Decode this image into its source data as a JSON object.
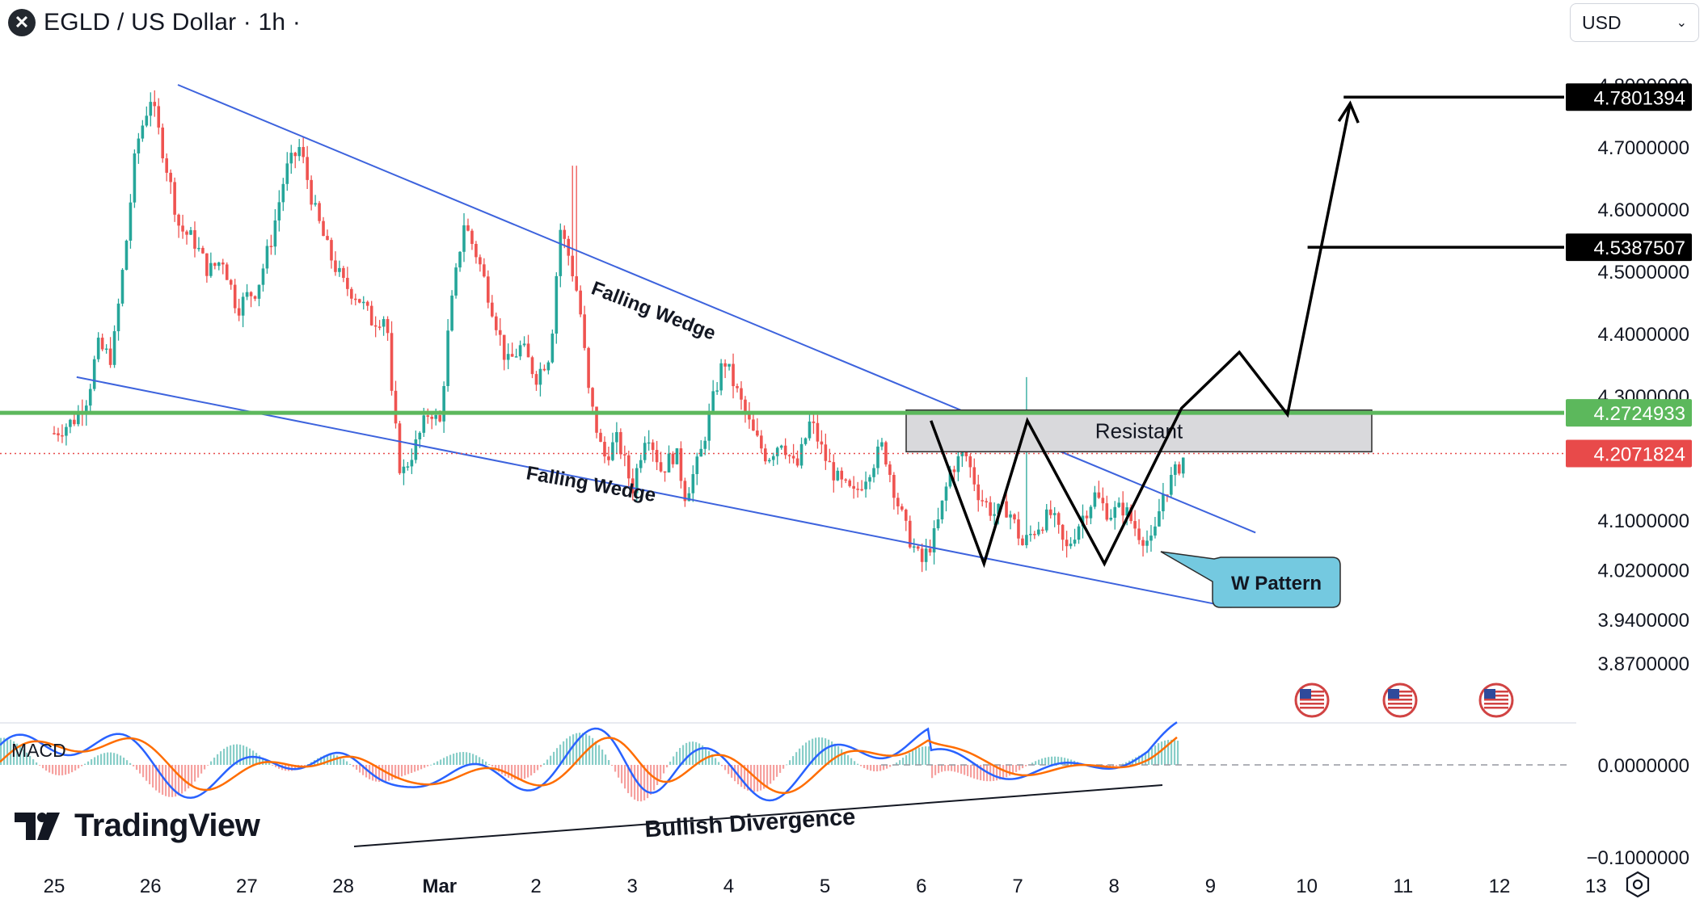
{
  "header": {
    "symbol_title": "EGLD / US Dollar · 1h ·",
    "logo_icon": "multiversx-logo-icon",
    "currency": "USD",
    "currency_icon": "chevron-down-icon"
  },
  "brand": {
    "name": "TradingView",
    "icon": "tradingview-logo-icon"
  },
  "annotations": {
    "falling_wedge_upper": "Falling Wedge",
    "falling_wedge_lower": "Falling Wedge",
    "resistant": "Resistant",
    "w_pattern": "W Pattern",
    "bullish_divergence": "Bullish Divergence",
    "macd_label": "MACD"
  },
  "price_tags": {
    "target_2": "4.7801394",
    "target_1": "4.5387507",
    "resistance": "4.2724933",
    "current": "4.2071824"
  },
  "colors": {
    "up_candle": "#26a69a",
    "down_candle": "#ef5350",
    "wedge_line": "#3d63dd",
    "resistance_line": "#5cb85c",
    "current_price": "#e84a4a",
    "w_pattern_box": "#74c9e0",
    "macd_line": "#2962ff",
    "signal_line": "#ff6d00"
  },
  "chart_data": {
    "type": "candlestick",
    "price_axis": {
      "ticks": [
        "4.8000000",
        "4.7000000",
        "4.6000000",
        "4.5000000",
        "4.4000000",
        "4.3000000",
        "4.1000000",
        "4.0200000",
        "3.9400000",
        "3.8700000"
      ],
      "ylim": [
        3.85,
        4.83
      ]
    },
    "time_axis": {
      "ticks": [
        "25",
        "26",
        "27",
        "28",
        "Mar",
        "2",
        "3",
        "4",
        "5",
        "6",
        "7",
        "8",
        "9",
        "10",
        "11",
        "12",
        "13"
      ]
    },
    "macd_axis": {
      "ticks": [
        "0.0000000",
        "−0.1000000"
      ]
    },
    "ohlc_path": [
      [
        0,
        4.24
      ],
      [
        0.2,
        4.26
      ],
      [
        0.35,
        4.3
      ],
      [
        0.45,
        4.38
      ],
      [
        0.6,
        4.36
      ],
      [
        0.75,
        4.55
      ],
      [
        0.85,
        4.7
      ],
      [
        1.0,
        4.78
      ],
      [
        1.15,
        4.68
      ],
      [
        1.3,
        4.57
      ],
      [
        1.45,
        4.55
      ],
      [
        1.6,
        4.5
      ],
      [
        1.75,
        4.52
      ],
      [
        1.9,
        4.44
      ],
      [
        2.0,
        4.46
      ],
      [
        2.1,
        4.47
      ],
      [
        2.25,
        4.55
      ],
      [
        2.4,
        4.66
      ],
      [
        2.55,
        4.7
      ],
      [
        2.7,
        4.6
      ],
      [
        2.85,
        4.53
      ],
      [
        3.0,
        4.48
      ],
      [
        3.15,
        4.46
      ],
      [
        3.3,
        4.42
      ],
      [
        3.45,
        4.43
      ],
      [
        3.5,
        4.3
      ],
      [
        3.6,
        4.17
      ],
      [
        3.75,
        4.22
      ],
      [
        3.9,
        4.28
      ],
      [
        4.0,
        4.25
      ],
      [
        4.1,
        4.42
      ],
      [
        4.25,
        4.58
      ],
      [
        4.4,
        4.52
      ],
      [
        4.55,
        4.44
      ],
      [
        4.7,
        4.35
      ],
      [
        4.85,
        4.38
      ],
      [
        5.0,
        4.33
      ],
      [
        5.15,
        4.37
      ],
      [
        5.25,
        4.57
      ],
      [
        5.35,
        4.52
      ],
      [
        5.45,
        4.45
      ],
      [
        5.55,
        4.3
      ],
      [
        5.7,
        4.2
      ],
      [
        5.85,
        4.23
      ],
      [
        6.0,
        4.15
      ],
      [
        6.15,
        4.25
      ],
      [
        6.3,
        4.18
      ],
      [
        6.45,
        4.21
      ],
      [
        6.55,
        4.14
      ],
      [
        6.7,
        4.2
      ],
      [
        6.8,
        4.27
      ],
      [
        6.95,
        4.36
      ],
      [
        7.1,
        4.3
      ],
      [
        7.25,
        4.24
      ],
      [
        7.4,
        4.2
      ],
      [
        7.55,
        4.23
      ],
      [
        7.7,
        4.18
      ],
      [
        7.85,
        4.26
      ],
      [
        8.0,
        4.2
      ],
      [
        8.15,
        4.16
      ],
      [
        8.3,
        4.14
      ],
      [
        8.45,
        4.18
      ],
      [
        8.6,
        4.22
      ],
      [
        8.75,
        4.13
      ],
      [
        8.85,
        4.08
      ],
      [
        9.0,
        4.03
      ],
      [
        9.15,
        4.08
      ],
      [
        9.3,
        4.18
      ],
      [
        9.45,
        4.21
      ],
      [
        9.6,
        4.14
      ],
      [
        9.75,
        4.11
      ],
      [
        9.9,
        4.12
      ],
      [
        10.05,
        4.06
      ],
      [
        10.2,
        4.09
      ],
      [
        10.35,
        4.11
      ],
      [
        10.5,
        4.05
      ],
      [
        10.65,
        4.1
      ],
      [
        10.8,
        4.14
      ],
      [
        10.95,
        4.11
      ],
      [
        11.1,
        4.12
      ],
      [
        11.25,
        4.08
      ],
      [
        11.4,
        4.06
      ],
      [
        11.5,
        4.14
      ],
      [
        11.65,
        4.18
      ],
      [
        11.75,
        4.21
      ]
    ],
    "series": [
      {
        "name": "Resistance",
        "value": 4.2724933
      },
      {
        "name": "Current price",
        "value": 4.2071824
      },
      {
        "name": "Target 1",
        "value": 4.5387507
      },
      {
        "name": "Target 2",
        "value": 4.7801394
      }
    ],
    "resistance_zone": {
      "x_range": [
        8.75,
        14.0
      ],
      "y_range": [
        4.21,
        4.277
      ]
    },
    "falling_wedge_upper_line": [
      [
        1.2,
        4.8
      ],
      [
        12.3,
        4.08
      ]
    ],
    "falling_wedge_lower_line": [
      [
        0.2,
        4.33
      ],
      [
        12.0,
        3.96
      ]
    ],
    "w_pattern_path": [
      [
        9.1,
        4.26
      ],
      [
        9.65,
        4.03
      ],
      [
        10.1,
        4.26
      ],
      [
        10.9,
        4.03
      ],
      [
        11.7,
        4.28
      ],
      [
        12.3,
        4.37
      ],
      [
        12.8,
        4.27
      ],
      [
        13.45,
        4.77
      ]
    ],
    "target_1_line_x": [
      13.0,
      14.0
    ],
    "target_2_line_x": [
      13.35,
      14.0
    ],
    "macd_lows_divergence": [
      [
        3.8,
        -0.085
      ],
      [
        12.1,
        -0.03
      ]
    ]
  }
}
